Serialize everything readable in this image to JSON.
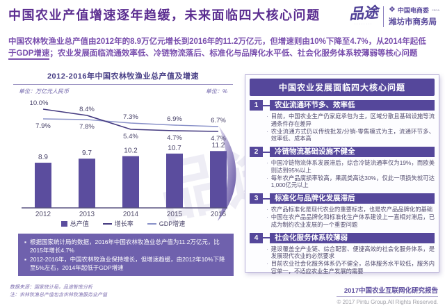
{
  "header": {
    "title": "中国农业产值增速逐年趋缓，未来面临四大核心问题",
    "logo_brand": "品途",
    "logo_tagline": "········",
    "org_name": "中国电商委",
    "org_abbr": "CECA",
    "org_bureau": "潍坊市商务局",
    "diamond_icon": "❖"
  },
  "intro": {
    "line1": "中国农林牧渔业总产值由2012年的8.9万亿元增长到2016年的11.2万亿元，但增速则由10%下降至4.7%，从2014年起低",
    "line2_underlined": "于GDP增速",
    "line2_rest": "；农业发展面临流通效率低、冷链物流落后、标准化与品牌化水平低、社会化服务体系较薄弱等核心问题"
  },
  "chart": {
    "title": "2012-2016年中国农林牧渔业总产值及增速",
    "unit_left": "单位：万亿元人民币",
    "unit_right": "单位：%",
    "legend": [
      {
        "label": "总产值"
      },
      {
        "label": "增长率"
      },
      {
        "label": "GDP增速"
      }
    ]
  },
  "chart_data": {
    "type": "bar",
    "title": "2012-2016年中国农林牧渔业总产值及增速",
    "categories": [
      "2012",
      "2013",
      "2014",
      "2015",
      "2016"
    ],
    "series": [
      {
        "name": "总产值",
        "type": "bar",
        "unit": "万亿元人民币",
        "values": [
          8.9,
          9.7,
          10.2,
          10.7,
          11.2
        ]
      },
      {
        "name": "增长率",
        "type": "line",
        "unit": "%",
        "values": [
          10.0,
          8.4,
          5.4,
          4.7,
          4.7
        ]
      },
      {
        "name": "GDP增速",
        "type": "line",
        "unit": "%",
        "values": [
          7.9,
          7.8,
          7.3,
          6.9,
          6.7
        ]
      }
    ],
    "xlabel": "",
    "ylabel_left": "万亿元人民币",
    "ylabel_right": "%",
    "legend_position": "bottom",
    "grid": false
  },
  "summary": {
    "bullets": [
      "根据国家统计局的数据，2016年中国农林牧渔业总产值为11.2万亿元，比2015年增长4.7%",
      "2012-2016年，中国农林牧渔业保持增长，但增速趋缓，由2012年10%下降至5%左右，2014年起低于GDP增速"
    ]
  },
  "panel": {
    "title": "中国农业发展面临四大核心问题",
    "items": [
      {
        "num": "1",
        "title": "农业流通环节多、效率低",
        "bullets": [
          "目前，中国农业生产仍家庭承包为主，区域分散且基础设施等流通条件存在差异",
          "农业流通方式仍以传统批发/分销-零售模式为主，流通环节多、效率低、成本高"
        ]
      },
      {
        "num": "2",
        "title": "冷链物流基础设施不健全",
        "bullets": [
          "中国冷链物流体系发展滞后，综合冷链流通率仅为19%，而欧美则达到95%以上",
          "每年农产品腐损率较高，果蔬类高达30%，仅此一项损失就可达1,000亿元以上"
        ]
      },
      {
        "num": "3",
        "title": "标准化与品牌化发展滞后",
        "bullets": [
          "农产品标准化是现代农业的重要标志，也是农产品品牌化的基础",
          "中国在农产品品牌化和标准化生产体系建设上一直相对滞后，已成为制约农业发展的一个重要问题"
        ]
      },
      {
        "num": "4",
        "title": "社会化服务体系较薄弱",
        "bullets": [
          "建设覆盖全产业链、综合配套、便捷高效的社会化服务体系，是发展现代农业的必然要求",
          "目前农业社会化服务体系仍不健全，总体服务水平较低，服务内容单一，不适应农业生产发展的需要"
        ]
      }
    ]
  },
  "watermark": "品途",
  "footer": {
    "source_line1": "数据来源：国家统计局，品途智库分析",
    "source_line2": "注：农林牧渔总产值包含农林牧渔服务业产值",
    "report_title": "2017中国农业互联网化研究报告",
    "copyright": "© 2017 Pintu Group.All Rights Reserved."
  },
  "colors": {
    "title": "#5b2d90",
    "intro": "#7a4fae",
    "bar": "#5b4d9e",
    "panel_purple": "#55479b",
    "summary_bg": "#6f61ad",
    "line_growth": "#43397f",
    "line_gdp": "#8890c8",
    "label": "#464067",
    "copyright_gray": "#a0a0a8"
  }
}
